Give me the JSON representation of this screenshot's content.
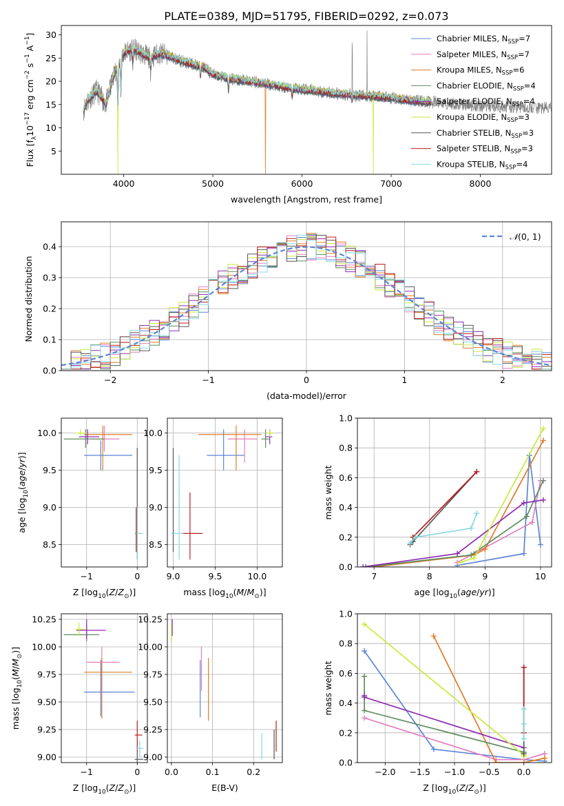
{
  "figure_title": "PLATE=0389, MJD=51795, FIBERID=0292, z=0.073",
  "legend_entries": [
    {
      "label": "Chabrier MILES, N",
      "sub": "SSP",
      "tail": "=7",
      "color": "#5b84d6"
    },
    {
      "label": "Salpeter MILES, N",
      "sub": "SSP",
      "tail": "=7",
      "color": "#e47dbf"
    },
    {
      "label": "Kroupa MILES, N",
      "sub": "SSP",
      "tail": "=6",
      "color": "#e07b24"
    },
    {
      "label": "Chabrier ELODIE, N",
      "sub": "SSP",
      "tail": "=4",
      "color": "#5e8b5e"
    },
    {
      "label": "Salpeter ELODIE, N",
      "sub": "SSP",
      "tail": "=4",
      "color": "#8e2bb0"
    },
    {
      "label": "Kroupa ELODIE, N",
      "sub": "SSP",
      "tail": "=3",
      "color": "#c8ea3a"
    },
    {
      "label": "Chabrier STELIB, N",
      "sub": "SSP",
      "tail": "=3",
      "color": "#555555"
    },
    {
      "label": "Salpeter STELIB, N",
      "sub": "SSP",
      "tail": "=3",
      "color": "#b81d1d"
    },
    {
      "label": "Kroupa STELIB, N",
      "sub": "SSP",
      "tail": "=4",
      "color": "#86d9e0"
    }
  ],
  "chart_data": [
    {
      "id": "spectrum",
      "type": "line",
      "xlabel": "wavelength [Angstrom, rest frame]",
      "ylabel": "Flux [f",
      "ylabel_parts": [
        "Flux [f",
        "λ",
        "10",
        "−17",
        " erg cm",
        "−2",
        " s",
        "−1",
        " A",
        "−1",
        "]"
      ],
      "xlim": [
        3300,
        8800
      ],
      "ylim": [
        0,
        32
      ],
      "xticks": [
        4000,
        5000,
        6000,
        7000,
        8000
      ],
      "yticks": [
        5,
        10,
        15,
        20,
        25,
        30
      ],
      "grid": false,
      "legend": "top-right",
      "observed_color": "#808080",
      "observed_anchor_points": [
        [
          3550,
          14
        ],
        [
          3600,
          16
        ],
        [
          3700,
          18
        ],
        [
          3800,
          15
        ],
        [
          3900,
          22
        ],
        [
          4000,
          26
        ],
        [
          4100,
          27
        ],
        [
          4200,
          26
        ],
        [
          4300,
          25
        ],
        [
          4400,
          26
        ],
        [
          4500,
          25.5
        ],
        [
          4700,
          24
        ],
        [
          4900,
          23
        ],
        [
          5000,
          21.5
        ],
        [
          5200,
          20.5
        ],
        [
          5400,
          20
        ],
        [
          5600,
          19.5
        ],
        [
          5800,
          18.8
        ],
        [
          6000,
          18.2
        ],
        [
          6200,
          17.8
        ],
        [
          6400,
          17.3
        ],
        [
          6600,
          17
        ],
        [
          6800,
          16.8
        ],
        [
          7000,
          16.4
        ],
        [
          7200,
          15.9
        ],
        [
          7400,
          15.6
        ],
        [
          7600,
          15.3
        ],
        [
          7800,
          15
        ],
        [
          8000,
          14.8
        ],
        [
          8200,
          14.6
        ],
        [
          8400,
          14.5
        ],
        [
          8600,
          14.3
        ],
        [
          8800,
          14.2
        ]
      ],
      "model_end_wavelength": 7450
    },
    {
      "id": "residual-histogram",
      "type": "bar",
      "xlabel": "(data-model)/error",
      "ylabel": "Normed distribution",
      "xlim": [
        -2.5,
        2.5
      ],
      "ylim": [
        0,
        0.48
      ],
      "xticks": [
        -2,
        -1,
        0,
        1,
        2
      ],
      "yticks": [
        0.0,
        0.1,
        0.2,
        0.3,
        0.4
      ],
      "grid": true,
      "legend": "top-right",
      "legend_label": "N(0,1)",
      "gaussian_color": "#5b84d6",
      "bin_width": 0.1
    },
    {
      "id": "age-vs-Z",
      "type": "scatter",
      "xlabel": "Z [log10(Z/Z⊙)]",
      "ylabel": "age [log10(age/yr)]",
      "xlim": [
        -1.5,
        0.2
      ],
      "ylim": [
        8.2,
        10.2
      ],
      "xticks": [
        -1,
        0
      ],
      "yticks": [
        8.5,
        9.0,
        9.5,
        10.0
      ],
      "grid": true,
      "points": [
        {
          "c": 0,
          "x": -0.72,
          "y": 9.7,
          "ex": [
            -1.05,
            -0.1
          ],
          "ey": [
            9.5,
            9.9
          ]
        },
        {
          "c": 1,
          "x": -0.65,
          "y": 9.92,
          "ex": [
            -0.9,
            -0.35
          ],
          "ey": [
            9.75,
            10.1
          ]
        },
        {
          "c": 2,
          "x": -0.68,
          "y": 9.98,
          "ex": [
            -1.05,
            -0.1
          ],
          "ey": [
            9.5,
            10.1
          ]
        },
        {
          "c": 3,
          "x": -1.02,
          "y": 9.92,
          "ex": [
            -1.45,
            -0.65
          ],
          "ey": [
            9.8,
            10.05
          ]
        },
        {
          "c": 4,
          "x": -0.98,
          "y": 9.95,
          "ex": [
            -1.15,
            -0.75
          ],
          "ey": [
            9.85,
            10.05
          ]
        },
        {
          "c": 5,
          "x": -1.12,
          "y": 10.0,
          "ex": [
            -1.22,
            -1.0
          ],
          "ey": [
            9.97,
            10.05
          ]
        },
        {
          "c": 6,
          "x": 0.0,
          "y": 8.65,
          "ex": [
            -0.02,
            0.03
          ],
          "ey": [
            8.3,
            9.8
          ]
        },
        {
          "c": 7,
          "x": -0.02,
          "y": 8.65,
          "ex": [
            -0.04,
            0.02
          ],
          "ey": [
            8.4,
            9.0
          ]
        },
        {
          "c": 8,
          "x": 0.0,
          "y": 8.65,
          "ex": [
            -0.02,
            0.12
          ],
          "ey": [
            8.3,
            9.0
          ]
        }
      ]
    },
    {
      "id": "age-vs-mass",
      "type": "scatter",
      "xlabel": "mass [log10(M/M⊙)]",
      "ylabel": "",
      "xlim": [
        8.93,
        10.3
      ],
      "ylim": [
        8.2,
        10.2
      ],
      "xticks": [
        9.0,
        9.5,
        10.0
      ],
      "yticks": [
        8.5,
        9.0,
        9.5,
        10.0
      ],
      "grid": true,
      "points": [
        {
          "c": 0,
          "x": 9.6,
          "y": 9.7,
          "ex": [
            9.4,
            9.85
          ],
          "ey": [
            9.5,
            10.05
          ]
        },
        {
          "c": 1,
          "x": 9.85,
          "y": 9.92,
          "ex": [
            9.65,
            10.0
          ],
          "ey": [
            9.6,
            10.05
          ]
        },
        {
          "c": 2,
          "x": 9.75,
          "y": 9.98,
          "ex": [
            9.3,
            10.05
          ],
          "ey": [
            9.5,
            10.1
          ]
        },
        {
          "c": 3,
          "x": 10.1,
          "y": 9.92,
          "ex": [
            10.05,
            10.15
          ],
          "ey": [
            9.8,
            10.05
          ]
        },
        {
          "c": 4,
          "x": 10.15,
          "y": 9.95,
          "ex": [
            10.1,
            10.18
          ],
          "ey": [
            9.85,
            10.05
          ]
        },
        {
          "c": 5,
          "x": 10.15,
          "y": 10.0,
          "ex": [
            10.1,
            10.2
          ],
          "ey": [
            9.95,
            10.05
          ]
        },
        {
          "c": 6,
          "x": 9.0,
          "y": 8.65,
          "ex": [
            8.98,
            9.02
          ],
          "ey": [
            8.4,
            9.8
          ]
        },
        {
          "c": 7,
          "x": 9.2,
          "y": 8.65,
          "ex": [
            9.1,
            9.35
          ],
          "ey": [
            8.3,
            9.2
          ]
        },
        {
          "c": 8,
          "x": 9.07,
          "y": 8.65,
          "ex": [
            8.98,
            9.12
          ],
          "ey": [
            8.3,
            9.7
          ]
        }
      ]
    },
    {
      "id": "mass-weight-vs-age",
      "type": "line",
      "xlabel": "age [log10(age/yr)]",
      "ylabel": "mass weight",
      "xlim": [
        6.7,
        10.2
      ],
      "ylim": [
        0,
        1
      ],
      "xticks": [
        7,
        8,
        9,
        10
      ],
      "yticks": [
        0.0,
        0.2,
        0.4,
        0.6,
        0.8,
        1.0
      ],
      "grid": true,
      "series": [
        {
          "c": 0,
          "points": [
            [
              8.5,
              0.01
            ],
            [
              9.7,
              0.09
            ],
            [
              9.8,
              0.75
            ],
            [
              10.0,
              0.15
            ]
          ]
        },
        {
          "c": 1,
          "points": [
            [
              8.5,
              0.03
            ],
            [
              8.8,
              0.09
            ],
            [
              9.85,
              0.3
            ],
            [
              10.0,
              0.58
            ]
          ]
        },
        {
          "c": 2,
          "points": [
            [
              7.0,
              0.0
            ],
            [
              8.8,
              0.08
            ],
            [
              9.0,
              0.12
            ],
            [
              10.05,
              0.85
            ]
          ]
        },
        {
          "c": 3,
          "points": [
            [
              6.85,
              0.0
            ],
            [
              8.75,
              0.08
            ],
            [
              9.75,
              0.34
            ],
            [
              10.05,
              0.58
            ]
          ]
        },
        {
          "c": 4,
          "points": [
            [
              6.8,
              0.0
            ],
            [
              8.5,
              0.09
            ],
            [
              9.7,
              0.43
            ],
            [
              10.05,
              0.45
            ]
          ]
        },
        {
          "c": 5,
          "points": [
            [
              8.55,
              0.03
            ],
            [
              8.8,
              0.06
            ],
            [
              10.05,
              0.93
            ]
          ]
        },
        {
          "c": 6,
          "points": [
            [
              7.65,
              0.15
            ],
            [
              7.7,
              0.17
            ],
            [
              8.85,
              0.64
            ]
          ]
        },
        {
          "c": 7,
          "points": [
            [
              7.7,
              0.2
            ],
            [
              8.85,
              0.64
            ]
          ]
        },
        {
          "c": 8,
          "points": [
            [
              7.65,
              0.16
            ],
            [
              7.75,
              0.2
            ],
            [
              8.75,
              0.26
            ],
            [
              8.85,
              0.36
            ]
          ]
        }
      ]
    },
    {
      "id": "mass-vs-Z",
      "type": "scatter",
      "xlabel": "Z [log10(Z/Z⊙)]",
      "ylabel": "mass [log10(M/M⊙)]",
      "xlim": [
        -1.5,
        0.2
      ],
      "ylim": [
        8.95,
        10.3
      ],
      "xticks": [
        -1,
        0
      ],
      "yticks": [
        9.0,
        9.25,
        9.5,
        9.75,
        10.0,
        10.25
      ],
      "ytick_labels": [
        "9.00",
        "9.25",
        "9.50",
        "9.75",
        "10.00",
        "10.25"
      ],
      "grid": true,
      "points": [
        {
          "c": 0,
          "x": -0.72,
          "y": 9.59,
          "ex": [
            -1.05,
            -0.05
          ],
          "ey": [
            9.37,
            9.88
          ]
        },
        {
          "c": 1,
          "x": -0.7,
          "y": 9.86,
          "ex": [
            -1.0,
            -0.35
          ],
          "ey": [
            9.6,
            10.0
          ]
        },
        {
          "c": 2,
          "x": -0.7,
          "y": 9.77,
          "ex": [
            -1.05,
            -0.1
          ],
          "ey": [
            9.35,
            9.9
          ]
        },
        {
          "c": 3,
          "x": -1.0,
          "y": 10.11,
          "ex": [
            -1.45,
            -0.75
          ],
          "ey": [
            10.05,
            10.2
          ]
        },
        {
          "c": 4,
          "x": -1.0,
          "y": 10.15,
          "ex": [
            -1.2,
            -0.62
          ],
          "ey": [
            10.07,
            10.25
          ]
        },
        {
          "c": 5,
          "x": -1.15,
          "y": 10.16,
          "ex": [
            -1.22,
            -1.02
          ],
          "ey": [
            10.1,
            10.22
          ]
        },
        {
          "c": 6,
          "x": 0.0,
          "y": 8.98,
          "ex": [
            -0.05,
            0.12
          ],
          "ey": [
            8.95,
            9.05
          ]
        },
        {
          "c": 7,
          "x": 0.0,
          "y": 9.2,
          "ex": [
            -0.05,
            0.1
          ],
          "ey": [
            9.05,
            9.33
          ]
        },
        {
          "c": 8,
          "x": 0.05,
          "y": 9.08,
          "ex": [
            -0.02,
            0.12
          ],
          "ey": [
            9.0,
            9.15
          ]
        }
      ]
    },
    {
      "id": "mass-vs-EBV",
      "type": "scatter",
      "xlabel": "E(B-V)",
      "ylabel": "",
      "xlim": [
        -0.01,
        0.27
      ],
      "ylim": [
        8.95,
        10.3
      ],
      "xticks": [
        0.0,
        0.1,
        0.2
      ],
      "yticks": [
        9.0,
        9.25,
        9.5,
        9.75,
        10.0,
        10.25
      ],
      "ytick_labels": [
        "9.00",
        "9.25",
        "9.50",
        "9.75",
        "10.00",
        "10.25"
      ],
      "grid": true,
      "points": [
        {
          "c": 0,
          "x": 0.07,
          "y": 9.6,
          "ey": [
            9.36,
            9.88
          ]
        },
        {
          "c": 1,
          "x": 0.073,
          "y": 9.8,
          "ey": [
            9.6,
            10.0
          ]
        },
        {
          "c": 2,
          "x": 0.09,
          "y": 9.6,
          "ey": [
            9.33,
            9.9
          ]
        },
        {
          "c": 3,
          "x": 0.0,
          "y": 10.1,
          "ey": [
            10.05,
            10.2
          ]
        },
        {
          "c": 4,
          "x": 0.002,
          "y": 10.18,
          "ey": [
            10.1,
            10.25
          ]
        },
        {
          "c": 5,
          "x": 0.0,
          "y": 10.12,
          "ey": [
            10.05,
            10.2
          ]
        },
        {
          "c": 6,
          "x": 0.25,
          "y": 9.1,
          "ey": [
            8.98,
            9.25
          ]
        },
        {
          "c": 7,
          "x": 0.255,
          "y": 9.2,
          "ey": [
            9.05,
            9.33
          ]
        },
        {
          "c": 8,
          "x": 0.22,
          "y": 9.08,
          "ey": [
            8.98,
            9.22
          ]
        }
      ]
    },
    {
      "id": "mass-weight-vs-Z",
      "type": "line",
      "xlabel": "Z [log10(Z/Z⊙)]",
      "ylabel": "mass weight",
      "xlim": [
        -2.4,
        0.4
      ],
      "ylim": [
        0,
        1
      ],
      "xticks": [
        -2.0,
        -1.5,
        -1.0,
        -0.5,
        0.0
      ],
      "yticks": [
        0.0,
        0.2,
        0.4,
        0.6,
        0.8,
        1.0
      ],
      "grid": true,
      "series": [
        {
          "c": 0,
          "points": [
            [
              -2.3,
              0.75
            ],
            [
              -1.3,
              0.09
            ],
            [
              0.0,
              0.02
            ],
            [
              0.3,
              0.01
            ]
          ]
        },
        {
          "c": 1,
          "points": [
            [
              -2.3,
              0.3
            ],
            [
              -0.4,
              0.02
            ],
            [
              0.0,
              0.02
            ],
            [
              0.3,
              0.06
            ]
          ]
        },
        {
          "c": 2,
          "points": [
            [
              -1.3,
              0.85
            ],
            [
              -0.4,
              0.0
            ],
            [
              0.0,
              0.0
            ],
            [
              0.3,
              0.03
            ]
          ]
        },
        {
          "c": 3,
          "points": [
            [
              -2.3,
              0.58
            ],
            [
              -2.3,
              0.35
            ],
            [
              0.0,
              0.07
            ]
          ]
        },
        {
          "c": 4,
          "points": [
            [
              -2.3,
              0.45
            ],
            [
              -2.3,
              0.44
            ],
            [
              0.0,
              0.1
            ]
          ]
        },
        {
          "c": 5,
          "points": [
            [
              -2.3,
              0.93
            ],
            [
              0.0,
              0.05
            ],
            [
              0.0,
              0.04
            ]
          ]
        },
        {
          "c": 6,
          "points": [
            [
              0.0,
              0.64
            ],
            [
              0.0,
              0.06
            ]
          ]
        },
        {
          "c": 7,
          "points": [
            [
              0.0,
              0.64
            ],
            [
              0.0,
              0.2
            ]
          ]
        },
        {
          "c": 8,
          "points": [
            [
              0.0,
              0.36
            ],
            [
              0.0,
              0.26
            ],
            [
              0.0,
              0.16
            ]
          ]
        }
      ]
    }
  ]
}
